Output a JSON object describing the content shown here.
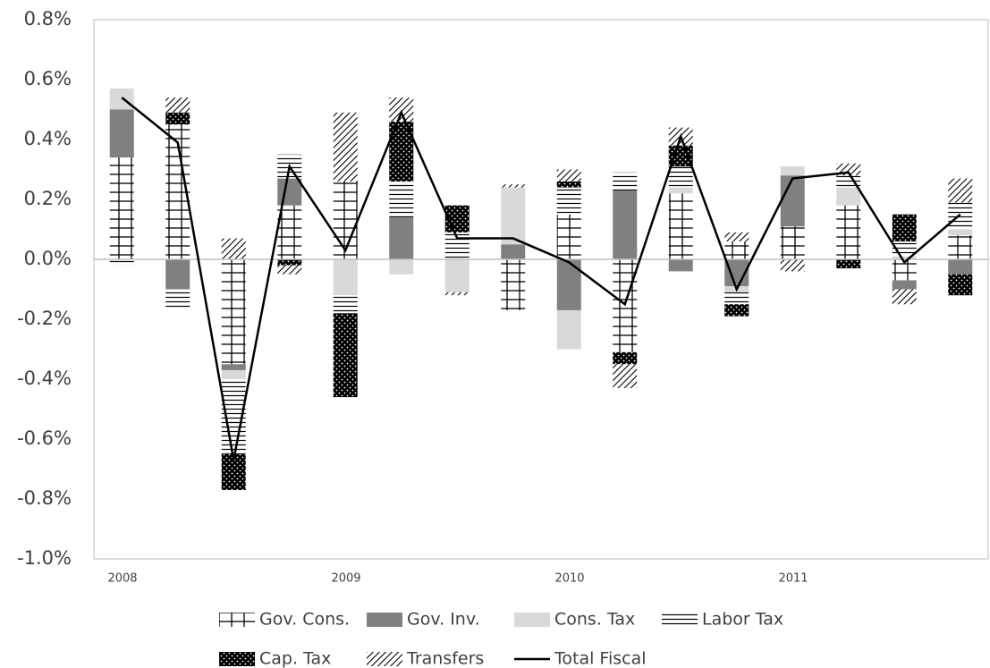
{
  "chart_data": {
    "type": "bar",
    "categories": [
      "2008",
      null,
      null,
      null,
      "2009",
      null,
      null,
      null,
      "2010",
      null,
      null,
      null,
      "2011",
      null,
      null,
      null
    ],
    "ylim": [
      -1.0,
      0.8
    ],
    "yticks": [
      {
        "value": 0.8,
        "label": "0.8%"
      },
      {
        "value": 0.6,
        "label": "0.6%"
      },
      {
        "value": 0.4,
        "label": "0.4%"
      },
      {
        "value": 0.2,
        "label": "0.2%"
      },
      {
        "value": 0.0,
        "label": "0.0%"
      },
      {
        "value": -0.2,
        "label": "-0.2%"
      },
      {
        "value": -0.4,
        "label": "-0.4%"
      },
      {
        "value": -0.6,
        "label": "-0.6%"
      },
      {
        "value": -0.8,
        "label": "-0.8%"
      },
      {
        "value": -1.0,
        "label": "-1.0%"
      }
    ],
    "series": [
      {
        "name": "Gov. Cons.",
        "color": "#000000",
        "pattern": "cross",
        "values": [
          0.34,
          0.45,
          -0.35,
          0.18,
          0.26,
          0,
          0,
          -0.17,
          0.15,
          -0.31,
          0.22,
          0.06,
          0.11,
          0.18,
          -0.07,
          0.08
        ]
      },
      {
        "name": "Gov. Inv.",
        "color": "#808080",
        "values": [
          0.16,
          -0.1,
          -0.02,
          0.09,
          0,
          0.14,
          0,
          0.05,
          -0.17,
          0.23,
          -0.04,
          -0.09,
          0.17,
          0,
          -0.03,
          -0.05
        ]
      },
      {
        "name": "Cons. Tax",
        "color": "#d9d9d9",
        "values": [
          0.07,
          0,
          -0.03,
          0,
          -0.12,
          -0.05,
          -0.11,
          0.19,
          -0.13,
          0,
          0.02,
          -0.02,
          0.03,
          0.06,
          0.01,
          0.02
        ]
      },
      {
        "name": "Labor Tax",
        "color": "#000000",
        "pattern": "hlines",
        "values": [
          -0.02,
          -0.06,
          -0.25,
          0.08,
          -0.06,
          0.12,
          0.09,
          0,
          0.09,
          0.06,
          0.07,
          -0.04,
          0,
          0.04,
          0.05,
          0.09
        ]
      },
      {
        "name": "Cap. Tax",
        "color": "#000000",
        "pattern": "dots",
        "values": [
          0,
          0.04,
          -0.12,
          -0.02,
          -0.28,
          0.2,
          0.09,
          0,
          0.02,
          -0.04,
          0.07,
          -0.04,
          0,
          -0.03,
          0.09,
          -0.07
        ]
      },
      {
        "name": "Transfers",
        "color": "#000000",
        "pattern": "diag",
        "values": [
          0,
          0.05,
          0.07,
          -0.03,
          0.23,
          0.08,
          -0.01,
          0.01,
          0.04,
          -0.08,
          0.06,
          0.03,
          -0.04,
          0.04,
          -0.05,
          0.08
        ]
      },
      {
        "name": "Total Fiscal",
        "type": "line",
        "color": "#000000",
        "values": [
          0.54,
          0.39,
          -0.67,
          0.31,
          0.03,
          0.49,
          0.07,
          0.07,
          -0.01,
          -0.15,
          0.41,
          -0.1,
          0.27,
          0.29,
          -0.01,
          0.15
        ]
      }
    ]
  }
}
